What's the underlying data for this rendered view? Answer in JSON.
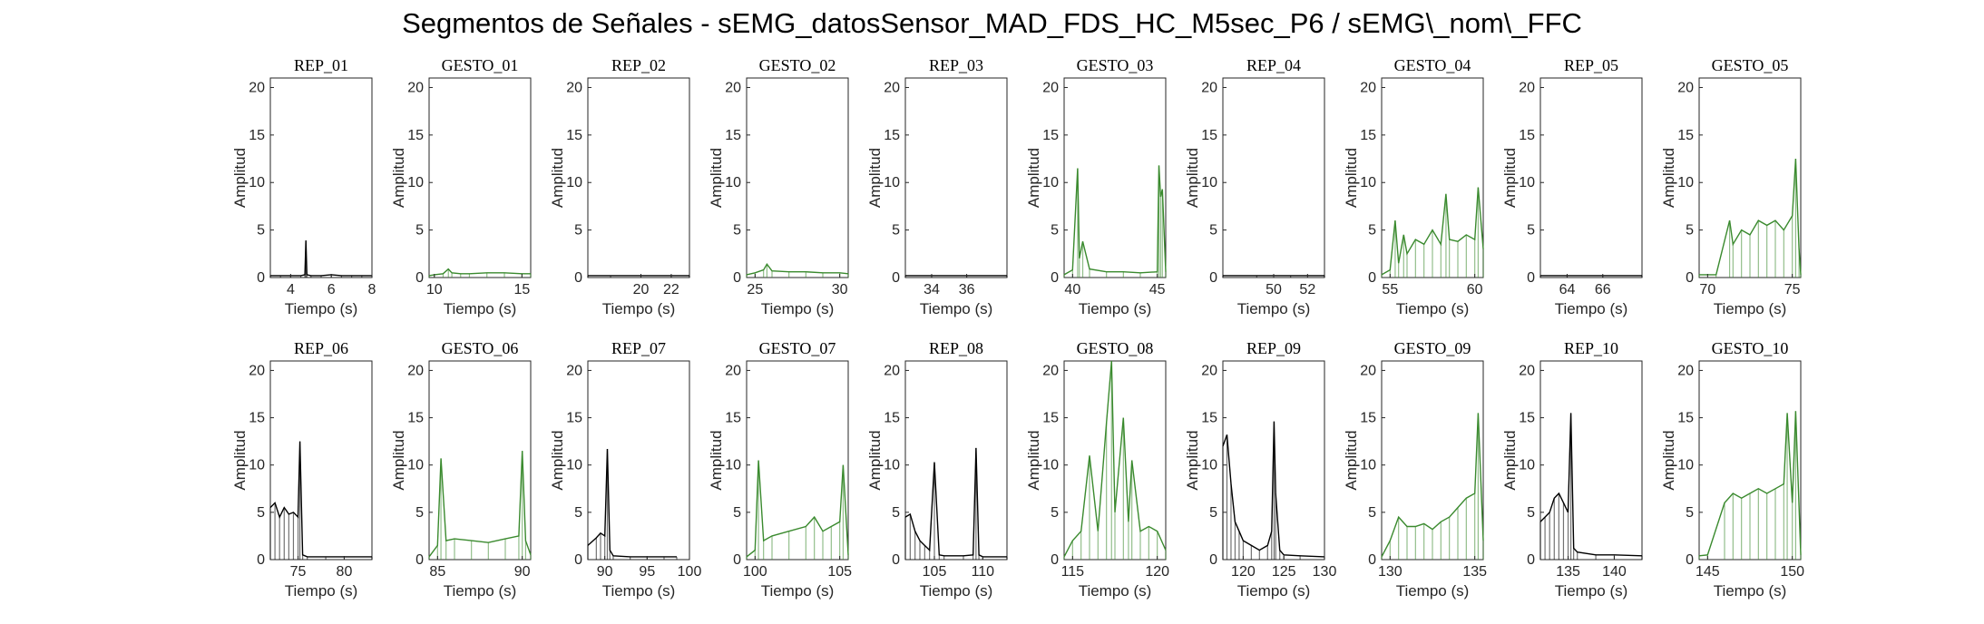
{
  "figure_title": "Segmentos de Señales - sEMG_datosSensor_MAD_FDS_HC_M5sec_P6 / sEMG\\_nom\\_FFC",
  "colors": {
    "rep": "#000000",
    "gesto": "#3a8a2e",
    "axis": "#262626"
  },
  "chart_data": [
    {
      "type": "line",
      "title": "REP_01",
      "xlabel": "Tiempo (s)",
      "ylabel": "Amplitud",
      "xlim": [
        3,
        8
      ],
      "ylim": [
        0,
        21
      ],
      "xticks": [
        4,
        6,
        8
      ],
      "yticks": [
        0,
        5,
        10,
        15,
        20
      ],
      "color": "rep",
      "x": [
        3,
        3.5,
        4,
        4.5,
        4.7,
        4.75,
        4.8,
        5,
        5.5,
        6,
        6.5,
        7,
        7.5,
        8
      ],
      "y": [
        0.2,
        0.2,
        0.2,
        0.2,
        0.3,
        3.9,
        0.3,
        0.2,
        0.2,
        0.3,
        0.2,
        0.2,
        0.2,
        0.2
      ]
    },
    {
      "type": "line",
      "title": "GESTO_01",
      "xlabel": "Tiempo (s)",
      "ylabel": "Amplitud",
      "xlim": [
        9.7,
        15.5
      ],
      "ylim": [
        0,
        21
      ],
      "xticks": [
        10,
        15
      ],
      "yticks": [
        0,
        5,
        10,
        15,
        20
      ],
      "color": "gesto",
      "x": [
        9.7,
        10,
        10.5,
        10.8,
        11,
        11.5,
        12,
        13,
        14,
        15,
        15.5
      ],
      "y": [
        0.2,
        0.3,
        0.4,
        0.9,
        0.5,
        0.4,
        0.4,
        0.5,
        0.5,
        0.4,
        0.4
      ]
    },
    {
      "type": "line",
      "title": "REP_02",
      "xlabel": "Tiempo (s)",
      "ylabel": "Amplitud",
      "xlim": [
        16.5,
        23.2
      ],
      "ylim": [
        0,
        21
      ],
      "xticks": [
        20,
        22
      ],
      "yticks": [
        0,
        5,
        10,
        15,
        20
      ],
      "color": "rep",
      "x": [
        16.5,
        18,
        20,
        22,
        23.2
      ],
      "y": [
        0.2,
        0.2,
        0.2,
        0.2,
        0.2
      ]
    },
    {
      "type": "line",
      "title": "GESTO_02",
      "xlabel": "Tiempo (s)",
      "ylabel": "Amplitud",
      "xlim": [
        24.5,
        30.5
      ],
      "ylim": [
        0,
        21
      ],
      "xticks": [
        25,
        30
      ],
      "yticks": [
        0,
        5,
        10,
        15,
        20
      ],
      "color": "gesto",
      "x": [
        24.5,
        25,
        25.5,
        25.7,
        26,
        27,
        28,
        29,
        30,
        30.5
      ],
      "y": [
        0.3,
        0.5,
        0.8,
        1.4,
        0.7,
        0.6,
        0.6,
        0.5,
        0.5,
        0.4
      ]
    },
    {
      "type": "line",
      "title": "REP_03",
      "xlabel": "Tiempo (s)",
      "ylabel": "Amplitud",
      "xlim": [
        32.5,
        38.3
      ],
      "ylim": [
        0,
        21
      ],
      "xticks": [
        34,
        36
      ],
      "yticks": [
        0,
        5,
        10,
        15,
        20
      ],
      "color": "rep",
      "x": [
        32.5,
        34,
        36,
        38.3
      ],
      "y": [
        0.2,
        0.2,
        0.2,
        0.2
      ]
    },
    {
      "type": "line",
      "title": "GESTO_03",
      "xlabel": "Tiempo (s)",
      "ylabel": "Amplitud",
      "xlim": [
        39.5,
        45.5
      ],
      "ylim": [
        0,
        21
      ],
      "xticks": [
        40,
        45
      ],
      "yticks": [
        0,
        5,
        10,
        15,
        20
      ],
      "color": "gesto",
      "x": [
        39.5,
        40,
        40.3,
        40.4,
        40.6,
        41,
        42,
        43,
        44,
        45,
        45.1,
        45.2,
        45.3,
        45.5
      ],
      "y": [
        0.3,
        0.8,
        11.5,
        2,
        3.8,
        0.9,
        0.6,
        0.6,
        0.5,
        0.6,
        11.8,
        8.5,
        9.3,
        0.6
      ]
    },
    {
      "type": "line",
      "title": "REP_04",
      "xlabel": "Tiempo (s)",
      "ylabel": "Amplitud",
      "xlim": [
        47,
        53
      ],
      "ylim": [
        0,
        21
      ],
      "xticks": [
        50,
        52
      ],
      "yticks": [
        0,
        5,
        10,
        15,
        20
      ],
      "color": "rep",
      "x": [
        47,
        49,
        51,
        53
      ],
      "y": [
        0.2,
        0.2,
        0.2,
        0.2
      ]
    },
    {
      "type": "line",
      "title": "GESTO_04",
      "xlabel": "Tiempo (s)",
      "ylabel": "Amplitud",
      "xlim": [
        54.5,
        60.5
      ],
      "ylim": [
        0,
        21
      ],
      "xticks": [
        55,
        60
      ],
      "yticks": [
        0,
        5,
        10,
        15,
        20
      ],
      "color": "gesto",
      "x": [
        54.5,
        55,
        55.3,
        55.5,
        55.8,
        56,
        56.5,
        57,
        57.5,
        58,
        58.3,
        58.5,
        59,
        59.5,
        60,
        60.2,
        60.5
      ],
      "y": [
        0.3,
        0.8,
        6,
        1.5,
        4.5,
        2.5,
        4,
        3.5,
        5,
        3.5,
        8.8,
        4,
        3.8,
        4.5,
        4,
        9.5,
        3
      ]
    },
    {
      "type": "line",
      "title": "REP_05",
      "xlabel": "Tiempo (s)",
      "ylabel": "Amplitud",
      "xlim": [
        62.5,
        68.2
      ],
      "ylim": [
        0,
        21
      ],
      "xticks": [
        64,
        66
      ],
      "yticks": [
        0,
        5,
        10,
        15,
        20
      ],
      "color": "rep",
      "x": [
        62.5,
        64,
        66,
        68.2
      ],
      "y": [
        0.2,
        0.2,
        0.2,
        0.2
      ]
    },
    {
      "type": "line",
      "title": "GESTO_05",
      "xlabel": "Tiempo (s)",
      "ylabel": "Amplitud",
      "xlim": [
        69.5,
        75.5
      ],
      "ylim": [
        0,
        21
      ],
      "xticks": [
        70,
        75
      ],
      "yticks": [
        0,
        5,
        10,
        15,
        20
      ],
      "color": "gesto",
      "x": [
        69.5,
        70.5,
        71.3,
        71.5,
        72,
        72.5,
        73,
        73.5,
        74,
        74.5,
        75,
        75.2,
        75.4,
        75.5
      ],
      "y": [
        0.3,
        0.3,
        6,
        3.5,
        5,
        4.5,
        6,
        5.5,
        6,
        5,
        6.5,
        12.5,
        3,
        0.3
      ]
    },
    {
      "type": "line",
      "title": "REP_06",
      "xlabel": "Tiempo (s)",
      "ylabel": "Amplitud",
      "xlim": [
        72,
        83
      ],
      "ylim": [
        0,
        21
      ],
      "xticks": [
        75,
        80
      ],
      "yticks": [
        0,
        5,
        10,
        15,
        20
      ],
      "color": "rep",
      "x": [
        72,
        72.5,
        73,
        73.5,
        74,
        74.5,
        75,
        75.2,
        75.5,
        76,
        78,
        80,
        83
      ],
      "y": [
        5.5,
        6,
        4.5,
        5.5,
        4.8,
        5,
        4.5,
        12.5,
        0.5,
        0.3,
        0.3,
        0.3,
        0.3
      ]
    },
    {
      "type": "line",
      "title": "GESTO_06",
      "xlabel": "Tiempo (s)",
      "ylabel": "Amplitud",
      "xlim": [
        84.5,
        90.5
      ],
      "ylim": [
        0,
        21
      ],
      "xticks": [
        85,
        90
      ],
      "yticks": [
        0,
        5,
        10,
        15,
        20
      ],
      "color": "gesto",
      "x": [
        84.5,
        85,
        85.2,
        85.5,
        86,
        87,
        88,
        89,
        89.8,
        90,
        90.2,
        90.5
      ],
      "y": [
        0.3,
        1.5,
        10.7,
        2,
        2.2,
        2,
        1.8,
        2.2,
        2.5,
        11.5,
        2,
        0.5
      ]
    },
    {
      "type": "line",
      "title": "REP_07",
      "xlabel": "Tiempo (s)",
      "ylabel": "Amplitud",
      "xlim": [
        88,
        100
      ],
      "ylim": [
        0,
        21
      ],
      "xticks": [
        90,
        95,
        100
      ],
      "yticks": [
        0,
        5,
        10,
        15,
        20
      ],
      "color": "rep",
      "x": [
        88,
        89,
        89.5,
        90,
        90.3,
        90.6,
        91,
        93,
        95,
        97,
        98.5
      ],
      "y": [
        1.5,
        2.3,
        2.8,
        2.5,
        11.7,
        1,
        0.4,
        0.3,
        0.3,
        0.3,
        0.3
      ]
    },
    {
      "type": "line",
      "title": "GESTO_07",
      "xlabel": "Tiempo (s)",
      "ylabel": "Amplitud",
      "xlim": [
        99.5,
        105.5
      ],
      "ylim": [
        0,
        21
      ],
      "xticks": [
        100,
        105
      ],
      "yticks": [
        0,
        5,
        10,
        15,
        20
      ],
      "color": "gesto",
      "x": [
        99.5,
        100,
        100.2,
        100.5,
        101,
        102,
        103,
        103.5,
        104,
        104.5,
        105,
        105.2,
        105.5
      ],
      "y": [
        0.3,
        1,
        10.5,
        2,
        2.5,
        3,
        3.5,
        4.5,
        3,
        3.5,
        4,
        10,
        0.5
      ]
    },
    {
      "type": "line",
      "title": "REP_08",
      "xlabel": "Tiempo (s)",
      "ylabel": "Amplitud",
      "xlim": [
        102,
        112.5
      ],
      "ylim": [
        0,
        21
      ],
      "xticks": [
        105,
        110
      ],
      "yticks": [
        0,
        5,
        10,
        15,
        20
      ],
      "color": "rep",
      "x": [
        102,
        102.5,
        103,
        103.5,
        104,
        104.5,
        105,
        105.5,
        106,
        108,
        109,
        109.3,
        109.6,
        110,
        112.5
      ],
      "y": [
        4.5,
        4.8,
        3,
        2,
        1.5,
        1,
        10.3,
        0.5,
        0.4,
        0.4,
        0.5,
        11.8,
        0.5,
        0.3,
        0.3
      ]
    },
    {
      "type": "line",
      "title": "GESTO_08",
      "xlabel": "Tiempo (s)",
      "ylabel": "Amplitud",
      "xlim": [
        114.5,
        120.5
      ],
      "ylim": [
        0,
        21
      ],
      "xticks": [
        115,
        120
      ],
      "yticks": [
        0,
        5,
        10,
        15,
        20
      ],
      "color": "gesto",
      "x": [
        114.5,
        115,
        115.5,
        116,
        116.5,
        117,
        117.3,
        117.5,
        118,
        118.3,
        118.5,
        119,
        119.5,
        120,
        120.5
      ],
      "y": [
        0.3,
        2,
        3,
        11,
        3,
        14.5,
        21,
        5,
        15,
        4,
        10.5,
        3,
        3.5,
        3,
        1
      ]
    },
    {
      "type": "line",
      "title": "REP_09",
      "xlabel": "Tiempo (s)",
      "ylabel": "Amplitud",
      "xlim": [
        117.5,
        130
      ],
      "ylim": [
        0,
        21
      ],
      "xticks": [
        120,
        125,
        130
      ],
      "yticks": [
        0,
        5,
        10,
        15,
        20
      ],
      "color": "rep",
      "x": [
        117.5,
        118,
        118.5,
        119,
        119.5,
        120,
        121,
        122,
        123,
        123.5,
        123.8,
        124,
        124.5,
        125,
        127,
        130
      ],
      "y": [
        12,
        13.2,
        8,
        4,
        3,
        2,
        1.5,
        1,
        1.5,
        3,
        14.6,
        7,
        1,
        0.5,
        0.4,
        0.3
      ]
    },
    {
      "type": "line",
      "title": "GESTO_09",
      "xlabel": "Tiempo (s)",
      "ylabel": "Amplitud",
      "xlim": [
        129.5,
        135.5
      ],
      "ylim": [
        0,
        21
      ],
      "xticks": [
        130,
        135
      ],
      "yticks": [
        0,
        5,
        10,
        15,
        20
      ],
      "color": "gesto",
      "x": [
        129.5,
        130,
        130.5,
        131,
        131.5,
        132,
        132.5,
        133,
        133.5,
        134,
        134.5,
        135,
        135.2,
        135.5
      ],
      "y": [
        0.3,
        2,
        4.5,
        3.5,
        3.5,
        3.8,
        3.2,
        4,
        4.5,
        5.5,
        6.5,
        7,
        15.5,
        2
      ]
    },
    {
      "type": "line",
      "title": "REP_10",
      "xlabel": "Tiempo (s)",
      "ylabel": "Amplitud",
      "xlim": [
        132,
        143
      ],
      "ylim": [
        0,
        21
      ],
      "xticks": [
        135,
        140
      ],
      "yticks": [
        0,
        5,
        10,
        15,
        20
      ],
      "color": "rep",
      "x": [
        132,
        132.5,
        133,
        133.5,
        134,
        134.5,
        135,
        135.3,
        135.6,
        136,
        138,
        140,
        143
      ],
      "y": [
        4,
        4.5,
        5,
        6.5,
        7,
        6,
        5,
        15.5,
        1.2,
        0.8,
        0.5,
        0.5,
        0.4
      ]
    },
    {
      "type": "line",
      "title": "GESTO_10",
      "xlabel": "Tiempo (s)",
      "ylabel": "Amplitud",
      "xlim": [
        144.5,
        150.5
      ],
      "ylim": [
        0,
        21
      ],
      "xticks": [
        145,
        150
      ],
      "yticks": [
        0,
        5,
        10,
        15,
        20
      ],
      "color": "gesto",
      "x": [
        144.5,
        145,
        146,
        146.5,
        147,
        147.5,
        148,
        148.5,
        149,
        149.5,
        149.7,
        150,
        150.2,
        150.5
      ],
      "y": [
        0.4,
        0.5,
        6,
        7,
        6.5,
        7,
        7.5,
        7,
        7.5,
        8,
        15.5,
        6,
        15.7,
        0.5
      ]
    }
  ]
}
